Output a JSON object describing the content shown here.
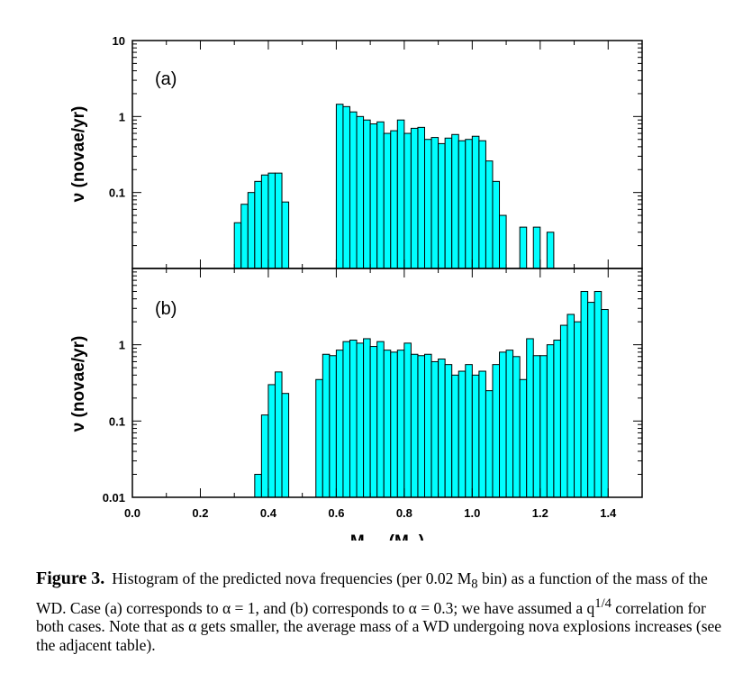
{
  "chart_data": [
    {
      "type": "bar",
      "panel_label": "(a)",
      "ylabel": "ν (novae/yr)",
      "yscale": "log",
      "ylim": [
        0.01,
        10
      ],
      "yticks": [
        {
          "value": 10,
          "label": "10"
        },
        {
          "value": 1,
          "label": "1"
        },
        {
          "value": 0.1,
          "label": "0.1"
        }
      ],
      "bin_width": 0.02,
      "bar_color": "#00ffff",
      "bins": [
        {
          "x": 0.3,
          "y": 0.04
        },
        {
          "x": 0.32,
          "y": 0.07
        },
        {
          "x": 0.34,
          "y": 0.1
        },
        {
          "x": 0.36,
          "y": 0.14
        },
        {
          "x": 0.38,
          "y": 0.17
        },
        {
          "x": 0.4,
          "y": 0.18
        },
        {
          "x": 0.42,
          "y": 0.18
        },
        {
          "x": 0.44,
          "y": 0.075
        },
        {
          "x": 0.6,
          "y": 1.45
        },
        {
          "x": 0.62,
          "y": 1.35
        },
        {
          "x": 0.64,
          "y": 1.15
        },
        {
          "x": 0.66,
          "y": 1.0
        },
        {
          "x": 0.68,
          "y": 0.9
        },
        {
          "x": 0.7,
          "y": 0.8
        },
        {
          "x": 0.72,
          "y": 0.85
        },
        {
          "x": 0.74,
          "y": 0.6
        },
        {
          "x": 0.76,
          "y": 0.65
        },
        {
          "x": 0.78,
          "y": 0.9
        },
        {
          "x": 0.8,
          "y": 0.6
        },
        {
          "x": 0.82,
          "y": 0.7
        },
        {
          "x": 0.84,
          "y": 0.72
        },
        {
          "x": 0.86,
          "y": 0.5
        },
        {
          "x": 0.88,
          "y": 0.53
        },
        {
          "x": 0.9,
          "y": 0.44
        },
        {
          "x": 0.92,
          "y": 0.52
        },
        {
          "x": 0.94,
          "y": 0.58
        },
        {
          "x": 0.96,
          "y": 0.48
        },
        {
          "x": 0.98,
          "y": 0.5
        },
        {
          "x": 1.0,
          "y": 0.55
        },
        {
          "x": 1.02,
          "y": 0.48
        },
        {
          "x": 1.04,
          "y": 0.26
        },
        {
          "x": 1.06,
          "y": 0.14
        },
        {
          "x": 1.08,
          "y": 0.05
        },
        {
          "x": 1.14,
          "y": 0.035
        },
        {
          "x": 1.18,
          "y": 0.035
        },
        {
          "x": 1.22,
          "y": 0.03
        }
      ]
    },
    {
      "type": "bar",
      "panel_label": "(b)",
      "ylabel": "ν (novae/yr)",
      "yscale": "log",
      "ylim": [
        0.01,
        10
      ],
      "yticks": [
        {
          "value": 1,
          "label": "1"
        },
        {
          "value": 0.1,
          "label": "0.1"
        },
        {
          "value": 0.01,
          "label": "0.01"
        }
      ],
      "bin_width": 0.02,
      "bar_color": "#00ffff",
      "bins": [
        {
          "x": 0.36,
          "y": 0.02
        },
        {
          "x": 0.38,
          "y": 0.12
        },
        {
          "x": 0.4,
          "y": 0.3
        },
        {
          "x": 0.42,
          "y": 0.44
        },
        {
          "x": 0.44,
          "y": 0.23
        },
        {
          "x": 0.54,
          "y": 0.35
        },
        {
          "x": 0.56,
          "y": 0.75
        },
        {
          "x": 0.58,
          "y": 0.72
        },
        {
          "x": 0.6,
          "y": 0.85
        },
        {
          "x": 0.62,
          "y": 1.1
        },
        {
          "x": 0.64,
          "y": 1.15
        },
        {
          "x": 0.66,
          "y": 1.05
        },
        {
          "x": 0.68,
          "y": 1.2
        },
        {
          "x": 0.7,
          "y": 0.95
        },
        {
          "x": 0.72,
          "y": 1.1
        },
        {
          "x": 0.74,
          "y": 0.85
        },
        {
          "x": 0.76,
          "y": 0.8
        },
        {
          "x": 0.78,
          "y": 0.85
        },
        {
          "x": 0.8,
          "y": 1.05
        },
        {
          "x": 0.82,
          "y": 0.75
        },
        {
          "x": 0.84,
          "y": 0.72
        },
        {
          "x": 0.86,
          "y": 0.75
        },
        {
          "x": 0.88,
          "y": 0.6
        },
        {
          "x": 0.9,
          "y": 0.65
        },
        {
          "x": 0.92,
          "y": 0.55
        },
        {
          "x": 0.94,
          "y": 0.4
        },
        {
          "x": 0.96,
          "y": 0.45
        },
        {
          "x": 0.98,
          "y": 0.55
        },
        {
          "x": 1.0,
          "y": 0.4
        },
        {
          "x": 1.02,
          "y": 0.45
        },
        {
          "x": 1.04,
          "y": 0.25
        },
        {
          "x": 1.06,
          "y": 0.55
        },
        {
          "x": 1.08,
          "y": 0.8
        },
        {
          "x": 1.1,
          "y": 0.85
        },
        {
          "x": 1.12,
          "y": 0.7
        },
        {
          "x": 1.14,
          "y": 0.35
        },
        {
          "x": 1.16,
          "y": 1.2
        },
        {
          "x": 1.18,
          "y": 0.72
        },
        {
          "x": 1.2,
          "y": 0.72
        },
        {
          "x": 1.22,
          "y": 1.0
        },
        {
          "x": 1.24,
          "y": 1.15
        },
        {
          "x": 1.26,
          "y": 1.8
        },
        {
          "x": 1.28,
          "y": 2.5
        },
        {
          "x": 1.3,
          "y": 2.0
        },
        {
          "x": 1.32,
          "y": 5.0
        },
        {
          "x": 1.34,
          "y": 3.6
        },
        {
          "x": 1.36,
          "y": 5.0
        },
        {
          "x": 1.38,
          "y": 2.9
        }
      ]
    }
  ],
  "x_axis": {
    "xlim": [
      0.0,
      1.5
    ],
    "tick_labels": [
      {
        "value": 0.0,
        "label": "0.0"
      },
      {
        "value": 0.2,
        "label": "0.2"
      },
      {
        "value": 0.4,
        "label": "0.4"
      },
      {
        "value": 0.6,
        "label": "0.6"
      },
      {
        "value": 0.8,
        "label": "0.8"
      },
      {
        "value": 1.0,
        "label": "1.0"
      },
      {
        "value": 1.2,
        "label": "1.2"
      },
      {
        "value": 1.4,
        "label": "1.4"
      }
    ],
    "title_main": "M",
    "title_sub": "WD",
    "title_paren_open": " (M",
    "title_symbol": "⊙",
    "title_paren_close": ")"
  },
  "caption": {
    "figure_label": "Figure 3.",
    "text_part1": "Histogram of the predicted nova frequencies (per 0.02 M",
    "text_sub": "8",
    "text_part2": " bin) as a function of the mass of the WD. Case (a) corresponds to α = 1, and (b) corresponds to α = 0.3; we have assumed a q",
    "text_sup": "1/4",
    "text_part3": " correlation for both cases.  Note that as α gets smaller, the average mass of a WD undergoing nova explosions increases (see the adjacent table)."
  }
}
